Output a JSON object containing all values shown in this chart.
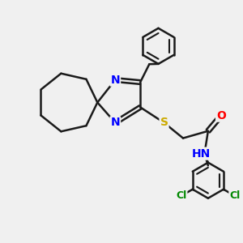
{
  "background_color": "#f0f0f0",
  "bond_color": "#1a1a1a",
  "bond_width": 1.8,
  "atom_colors": {
    "N": "#0000ff",
    "S": "#ccaa00",
    "O": "#ff0000",
    "Cl": "#008800",
    "H": "#555555",
    "C": "#1a1a1a"
  },
  "font_size": 10,
  "small_font": 9
}
